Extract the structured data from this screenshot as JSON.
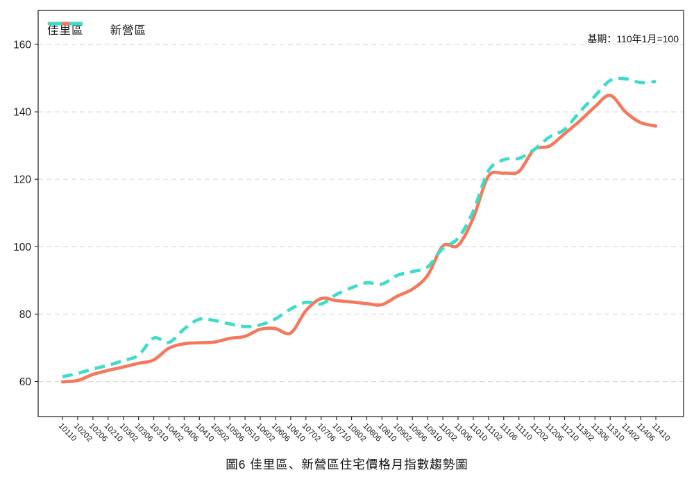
{
  "figure": {
    "note": "基期：110年1月=100",
    "title": "圖6 佳里區、新營區住宅價格月指數趨勢圖"
  },
  "chart_data": {
    "type": "line",
    "title": "圖6 佳里區、新營區住宅價格月指數趨勢圖",
    "note": "基期：110年1月=100",
    "categories": [
      "10110",
      "10202",
      "10206",
      "10210",
      "10302",
      "10306",
      "10310",
      "10402",
      "10406",
      "10410",
      "10502",
      "10506",
      "10510",
      "10602",
      "10606",
      "10610",
      "10702",
      "10706",
      "10710",
      "10802",
      "10806",
      "10810",
      "10902",
      "10906",
      "10910",
      "11002",
      "11006",
      "11010",
      "11102",
      "11106",
      "11110",
      "11202",
      "11206",
      "11210",
      "11302",
      "11306",
      "11310",
      "11402",
      "11406",
      "11410"
    ],
    "series": [
      {
        "name": "佳里區",
        "color": "#F4795C",
        "style": "solid",
        "values": [
          59.9,
          60.3,
          62.1,
          63.3,
          64.3,
          65.4,
          66.4,
          69.9,
          71.2,
          71.5,
          71.7,
          72.8,
          73.4,
          75.5,
          75.7,
          74.4,
          81.0,
          84.6,
          84.0,
          83.6,
          83.1,
          82.8,
          85.3,
          87.4,
          91.5,
          100.2,
          100.4,
          108.5,
          120.9,
          121.8,
          122.3,
          128.8,
          129.8,
          133.5,
          137.3,
          141.5,
          144.9,
          140.0,
          136.8,
          135.8
        ]
      },
      {
        "name": "新營區",
        "color": "#3EDCC8",
        "style": "dashed",
        "values": [
          61.4,
          62.4,
          63.7,
          64.8,
          66.2,
          67.8,
          72.9,
          71.6,
          75.6,
          78.5,
          78.1,
          77.1,
          76.3,
          76.8,
          78.6,
          81.5,
          83.5,
          83.0,
          85.8,
          87.8,
          89.3,
          88.9,
          91.5,
          92.6,
          94.0,
          99.5,
          102.5,
          110.5,
          122.5,
          125.8,
          126.2,
          128.8,
          132.5,
          134.8,
          140.0,
          144.7,
          149.3,
          149.8,
          148.7,
          149.0
        ]
      }
    ],
    "yticks": [
      60,
      80,
      100,
      120,
      140,
      160
    ],
    "ylim": [
      49.5,
      170.5
    ],
    "grid": true,
    "legend_position": "top-left"
  },
  "colors": {
    "grid": "#d7dce0",
    "axis": "#2b2b2b",
    "tick_text": "#1a1a1a"
  }
}
